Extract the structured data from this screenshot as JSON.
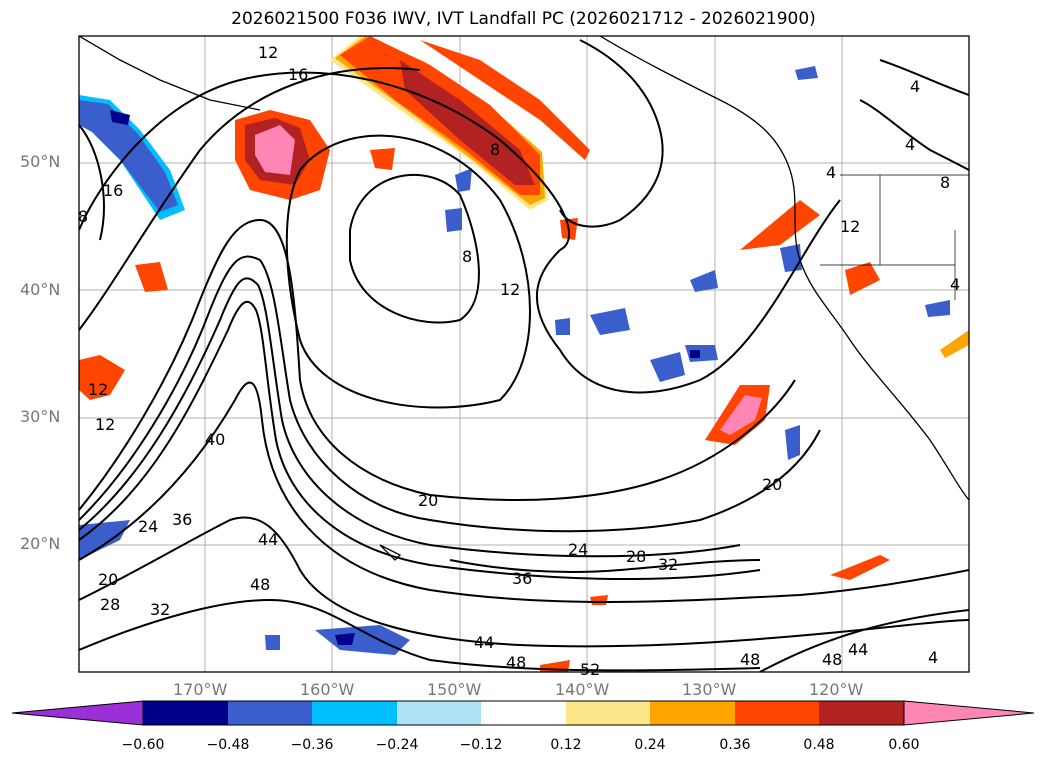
{
  "title": "2026021500 F036 IWV, IVT Landfall PC (2026021712 - 2026021900)",
  "lat_labels": [
    "50°N",
    "40°N",
    "30°N",
    "20°N"
  ],
  "lon_labels": [
    "170°W",
    "160°W",
    "150°W",
    "140°W",
    "130°W",
    "120°W"
  ],
  "contour_labels": [
    "12",
    "16",
    "16",
    "8",
    "8",
    "8",
    "12",
    "12",
    "12",
    "40",
    "36",
    "24",
    "20",
    "28",
    "32",
    "44",
    "48",
    "20",
    "24",
    "28",
    "32",
    "36",
    "44",
    "48",
    "52",
    "48",
    "48",
    "44",
    "4",
    "4",
    "4",
    "8",
    "12",
    "4",
    "4",
    "20"
  ],
  "colorbar": {
    "ticks": [
      "−0.60",
      "−0.48",
      "−0.36",
      "−0.24",
      "−0.12",
      "0.12",
      "0.24",
      "0.36",
      "0.48",
      "0.60"
    ],
    "colors": [
      "#9b30d9",
      "#00008b",
      "#3a5fcd",
      "#00bfff",
      "#aee2f7",
      "#ffffff",
      "#fde68a",
      "#ffa500",
      "#ff4500",
      "#b22222",
      "#ff85b5",
      "#ff85b5"
    ]
  },
  "field_colors": {
    "pos_light": "#fde68a",
    "pos_mid": "#ffa500",
    "pos_strong": "#ff4500",
    "pos_dark": "#b22222",
    "pos_max": "#ff85b5",
    "neg_light": "#aee2f7",
    "neg_mid": "#00bfff",
    "neg_strong": "#3a5fcd",
    "neg_dark": "#00008b"
  }
}
